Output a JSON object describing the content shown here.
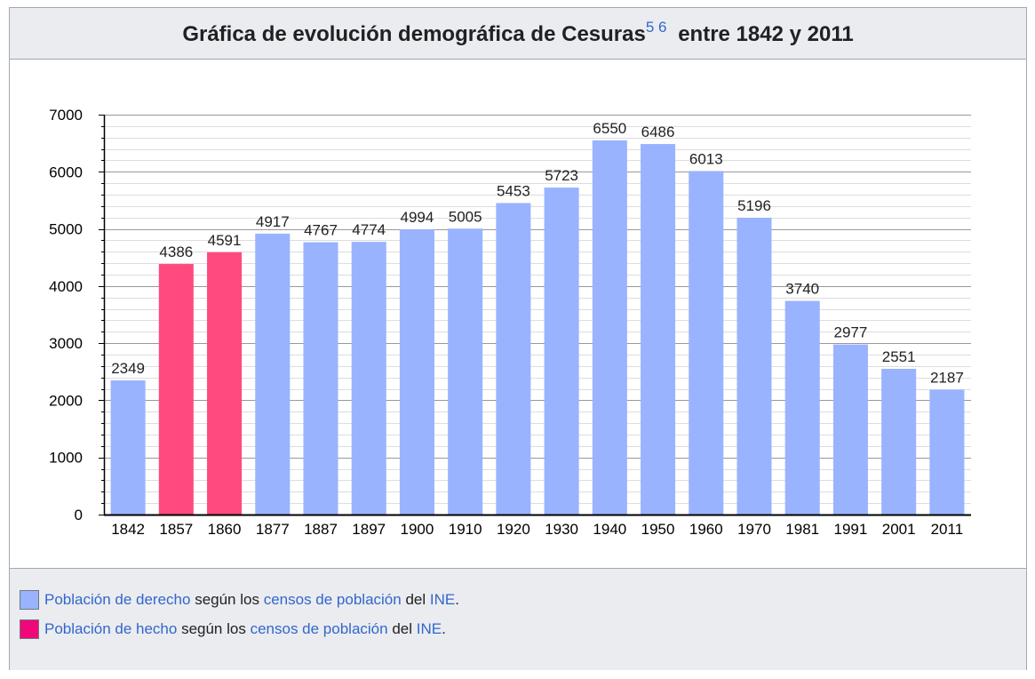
{
  "caption": {
    "title_main": "Gráfica de evolución demográfica de Cesuras",
    "refs": [
      "5",
      "6"
    ],
    "title_tail": "entre 1842 y 2011"
  },
  "colors": {
    "derecho": "#99b3ff",
    "hecho": "#ff4a7e",
    "legend_hecho_swatch": "#f0077a"
  },
  "chart_data": {
    "type": "bar",
    "categories": [
      "1842",
      "1857",
      "1860",
      "1877",
      "1887",
      "1897",
      "1900",
      "1910",
      "1920",
      "1930",
      "1940",
      "1950",
      "1960",
      "1970",
      "1981",
      "1991",
      "2001",
      "2011"
    ],
    "values": [
      2349,
      4386,
      4591,
      4917,
      4767,
      4774,
      4994,
      5005,
      5453,
      5723,
      6550,
      6486,
      6013,
      5196,
      3740,
      2977,
      2551,
      2187
    ],
    "series_type": [
      "derecho",
      "hecho",
      "hecho",
      "derecho",
      "derecho",
      "derecho",
      "derecho",
      "derecho",
      "derecho",
      "derecho",
      "derecho",
      "derecho",
      "derecho",
      "derecho",
      "derecho",
      "derecho",
      "derecho",
      "derecho"
    ],
    "ylim": [
      0,
      7000
    ],
    "y_ticks": [
      "0",
      "1000",
      "2000",
      "3000",
      "4000",
      "5000",
      "6000",
      "7000"
    ],
    "minor_step": 200,
    "grid": true
  },
  "legend": [
    {
      "link1": "Población de derecho",
      "text1": " según los ",
      "link2": "censos de población",
      "text2": " del ",
      "link3": "INE",
      "text3": "."
    },
    {
      "link1": "Población de hecho",
      "text1": " según los ",
      "link2": "censos de población",
      "text2": " del ",
      "link3": "INE",
      "text3": "."
    }
  ]
}
